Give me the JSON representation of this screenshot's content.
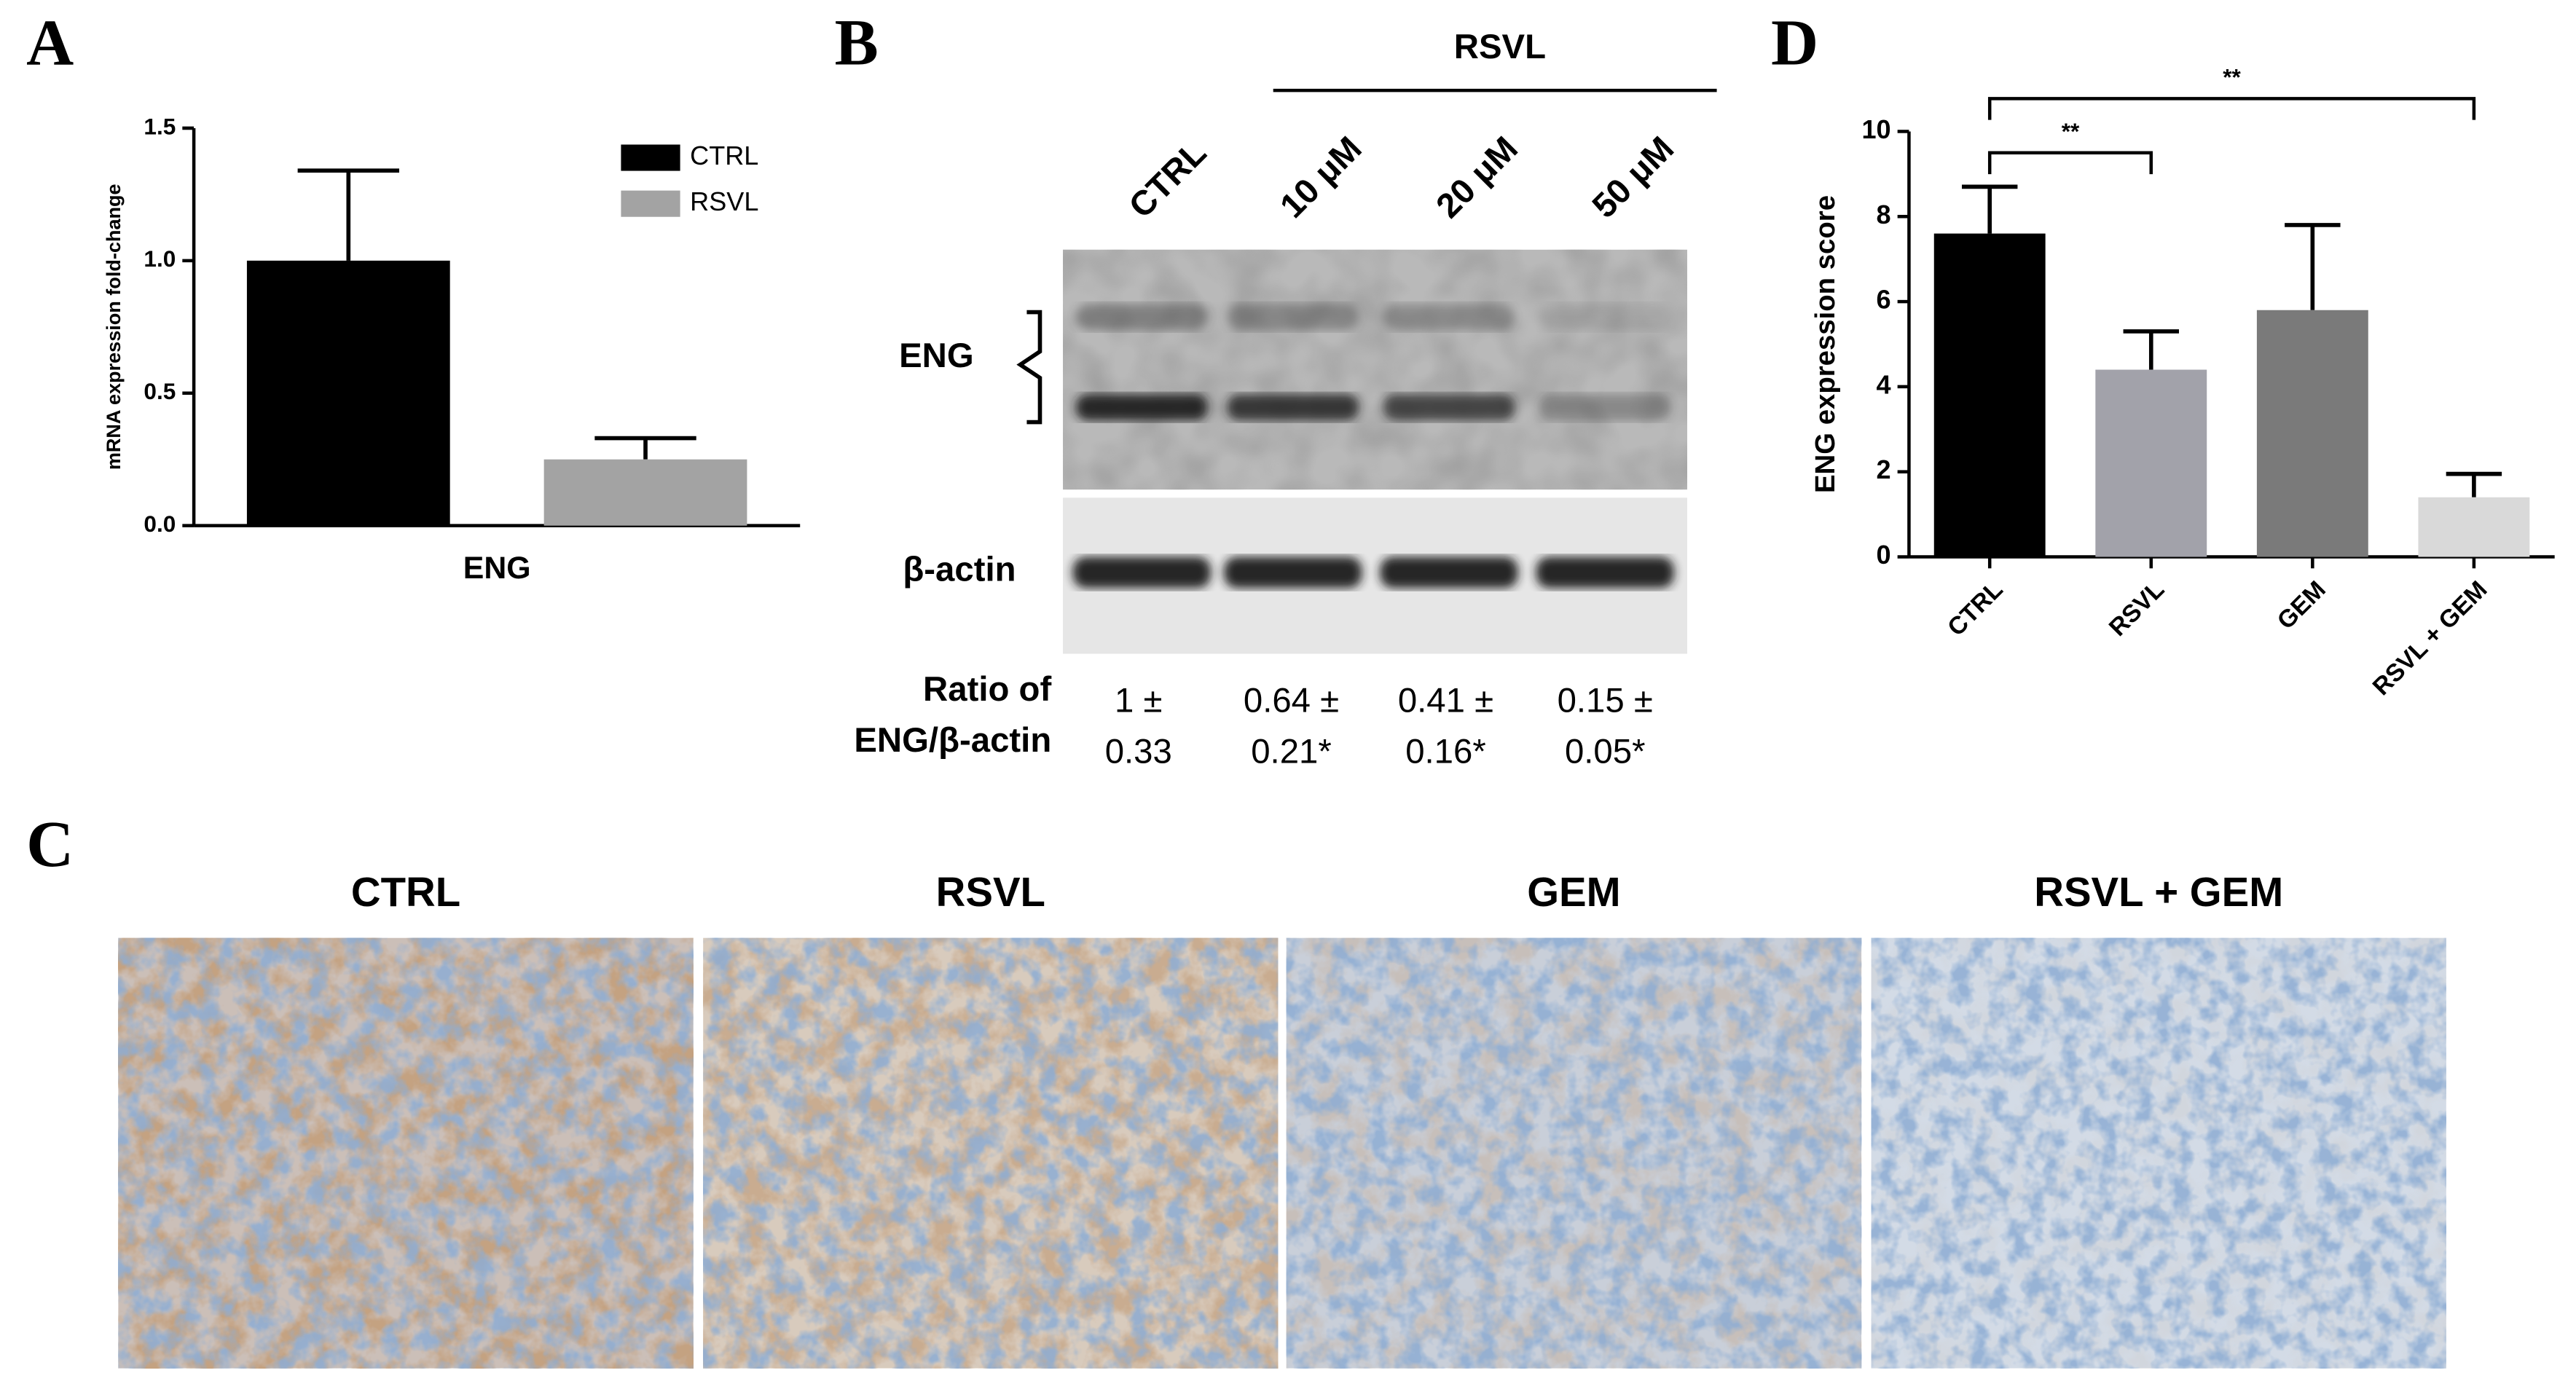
{
  "panel_labels": [
    "A",
    "B",
    "C",
    "D"
  ],
  "chart_data": [
    {
      "type": "bar",
      "ylabel": "mRNA expression fold-change",
      "categories": [
        "ENG"
      ],
      "series": [
        {
          "name": "CTRL",
          "color": "#000000",
          "values": [
            1.0
          ],
          "errors": [
            0.34
          ]
        },
        {
          "name": "RSVL",
          "color": "#a3a3a3",
          "values": [
            0.25
          ],
          "errors": [
            0.08
          ]
        }
      ],
      "ylim": [
        0,
        1.5
      ],
      "yticks": [
        {
          "value": 0,
          "label": "0.0"
        },
        0.5,
        {
          "value": 1,
          "label": "1.0"
        },
        1.5
      ],
      "legend": "upper right"
    },
    {
      "type": "bar",
      "ylabel": "ENG expression score",
      "categories": [
        "CTRL",
        "RSVL",
        "GEM",
        "RSVL + GEM"
      ],
      "values": [
        7.6,
        4.4,
        5.8,
        1.4
      ],
      "errors": [
        1.1,
        0.9,
        2.0,
        0.55
      ],
      "colors": [
        "#000000",
        "#a2a2aa",
        "#7a7a7a",
        "#d9d9d9"
      ],
      "ylim": [
        0,
        10
      ],
      "yticks": [
        0,
        2,
        4,
        6,
        8,
        10
      ],
      "annotations": [
        {
          "text": "**",
          "between": [
            0,
            1
          ]
        },
        {
          "text": "**",
          "between": [
            0,
            3
          ]
        }
      ]
    }
  ],
  "blot": {
    "group_label": "RSVL",
    "lanes": [
      "CTRL",
      "10 μM",
      "20 μM",
      "50 μM"
    ],
    "bands": [
      "ENG",
      "β-actin"
    ],
    "ratio_label": [
      "Ratio of",
      "ENG/β-actin"
    ],
    "ratios": [
      [
        "1 ±",
        "0.33"
      ],
      [
        "0.64 ±",
        "0.21*"
      ],
      [
        "0.41 ±",
        "0.16*"
      ],
      [
        "0.15 ±",
        "0.05*"
      ]
    ]
  },
  "histology": {
    "titles": [
      "CTRL",
      "RSVL",
      "GEM",
      "RSVL + GEM"
    ]
  }
}
